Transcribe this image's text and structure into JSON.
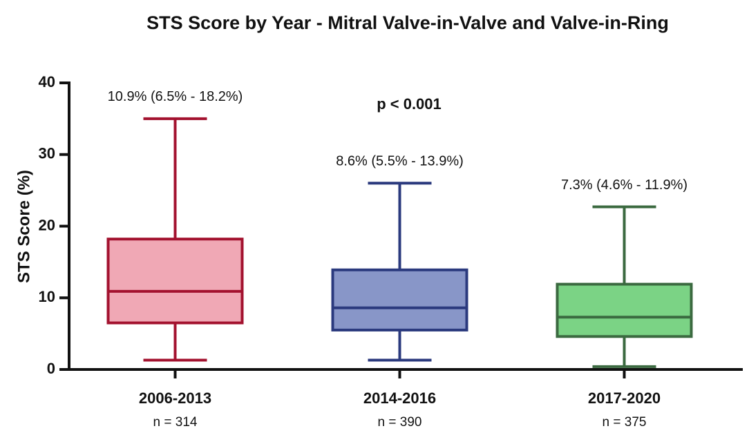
{
  "chart_data": {
    "type": "box",
    "title": "STS Score by Year - Mitral Valve-in-Valve and Valve-in-Ring",
    "y_label": "STS Score (%)",
    "annotation": "p < 0.001",
    "categories": [
      "2006-2013",
      "2014-2016",
      "2017-2020"
    ],
    "category_notes": [
      "n = 314",
      "n = 390",
      "n = 375"
    ],
    "boxes": [
      {
        "min": 1.3,
        "q1": 6.5,
        "median": 10.9,
        "q3": 18.2,
        "max": 35,
        "color": "#a3122f",
        "fill": "#f0a8b5",
        "label": "10.9% (6.5% - 18.2%)"
      },
      {
        "min": 1.3,
        "q1": 5.5,
        "median": 8.6,
        "q3": 13.9,
        "max": 26,
        "color": "#2b3a7e",
        "fill": "#8896c8",
        "label": "8.6% (5.5% - 13.9%)"
      },
      {
        "min": 0.4,
        "q1": 4.6,
        "median": 7.3,
        "q3": 11.9,
        "max": 22.7,
        "color": "#3b6a40",
        "fill": "#7bd385",
        "label": "7.3% (4.6% - 11.9%)"
      }
    ],
    "ylim": [
      0,
      40
    ],
    "yticks": [
      0,
      10,
      20,
      30,
      40
    ]
  }
}
